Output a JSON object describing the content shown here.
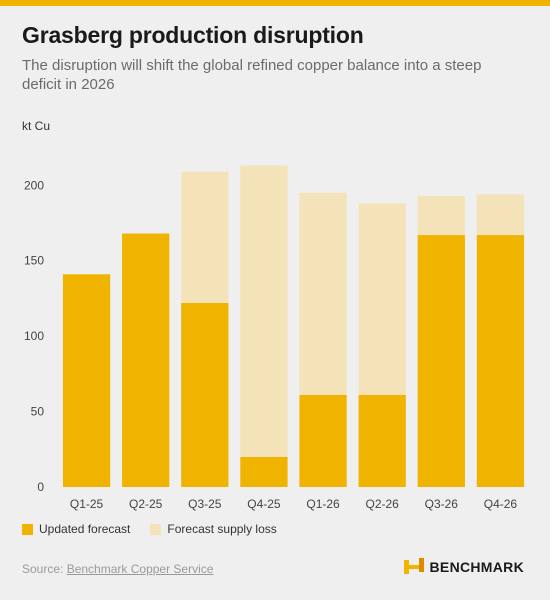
{
  "header": {
    "title": "Grasberg production disruption",
    "subtitle": "The disruption will shift the global refined copper balance into a steep deficit in 2026",
    "unit_label": "kt Cu"
  },
  "colors": {
    "accent": "#f0b400",
    "updated_forecast": "#f0b400",
    "supply_loss": "#f4e3b8",
    "background": "#efefef"
  },
  "chart_data": {
    "type": "bar",
    "stacked": true,
    "categories": [
      "Q1-25",
      "Q2-25",
      "Q3-25",
      "Q4-25",
      "Q1-26",
      "Q2-26",
      "Q3-26",
      "Q4-26"
    ],
    "series": [
      {
        "name": "Updated forecast",
        "values": [
          141,
          168,
          122,
          20,
          61,
          61,
          167,
          167
        ]
      },
      {
        "name": "Forecast supply loss",
        "values": [
          0,
          0,
          87,
          193,
          134,
          127,
          26,
          27
        ]
      }
    ],
    "yticks": [
      0,
      50,
      100,
      150,
      200
    ],
    "ylim": [
      0,
      230
    ],
    "ylabel": "kt Cu",
    "xlabel": "",
    "grid": false,
    "legend_position": "bottom-left"
  },
  "legend": {
    "items": [
      {
        "label": "Updated forecast",
        "color": "#f0b400"
      },
      {
        "label": "Forecast supply loss",
        "color": "#f4e3b8"
      }
    ]
  },
  "footer": {
    "source_prefix": "Source: ",
    "source_link": "Benchmark Copper Service",
    "brand_icon": "benchmark-logo-icon",
    "brand_name": "BENCHMARK"
  }
}
